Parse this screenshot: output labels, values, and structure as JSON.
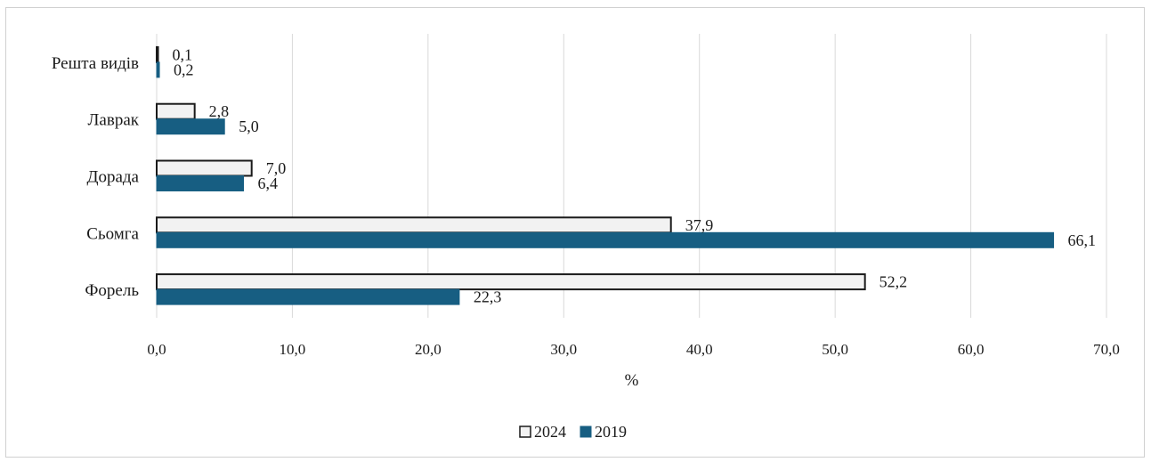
{
  "chart_data": {
    "type": "bar",
    "orientation": "horizontal",
    "categories": [
      "Решта видів",
      "Лаврак",
      "Дорада",
      "Сьомга",
      "Форель"
    ],
    "series": [
      {
        "name": "2024",
        "values": [
          0.1,
          2.8,
          7.0,
          37.9,
          52.2
        ],
        "labels": [
          "0,1",
          "2,8",
          "7,0",
          "37,9",
          "52,2"
        ],
        "color": "#f2f2f2",
        "stroke": "#1a1a1a"
      },
      {
        "name": "2019",
        "values": [
          0.2,
          5.0,
          6.4,
          66.1,
          22.3
        ],
        "labels": [
          "0,2",
          "5,0",
          "6,4",
          "66,1",
          "22,3"
        ],
        "color": "#175e82",
        "stroke": "#175e82"
      }
    ],
    "title": "",
    "xlabel": "%",
    "ylabel": "",
    "xlim": [
      0,
      70
    ],
    "xticks": [
      0,
      10,
      20,
      30,
      40,
      50,
      60,
      70
    ],
    "xtick_labels": [
      "0,0",
      "10,0",
      "20,0",
      "30,0",
      "40,0",
      "50,0",
      "60,0",
      "70,0"
    ],
    "grid": true,
    "legend_position": "bottom-center",
    "gridline_color": "#d9d9d9"
  }
}
